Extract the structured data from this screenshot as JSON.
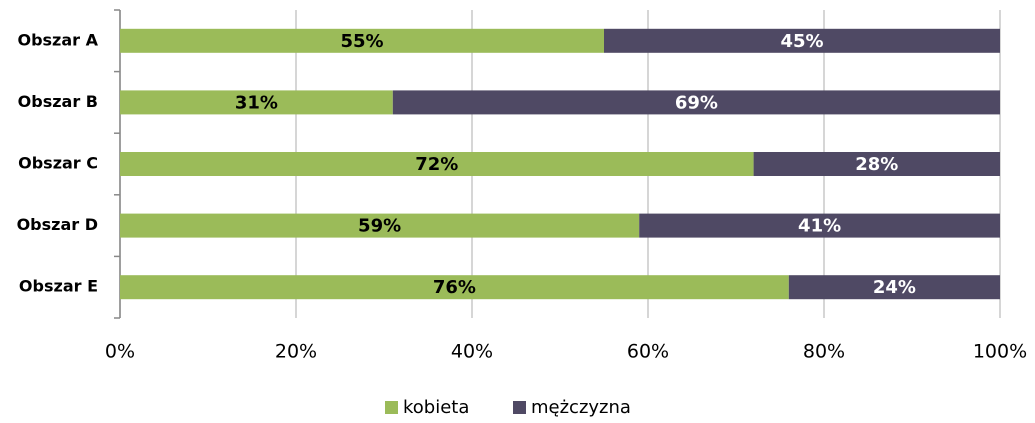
{
  "chart_data": {
    "type": "stacked_bar_horizontal",
    "categories": [
      "Obszar A",
      "Obszar B",
      "Obszar C",
      "Obszar D",
      "Obszar E"
    ],
    "series": [
      {
        "name": "kobieta",
        "color": "#9bbb59",
        "values": [
          55,
          31,
          72,
          59,
          76
        ],
        "value_labels": [
          "55%",
          "31%",
          "72%",
          "59%",
          "76%"
        ]
      },
      {
        "name": "mężczyzna",
        "color": "#4f4964",
        "values": [
          45,
          69,
          28,
          41,
          24
        ],
        "value_labels": [
          "45%",
          "69%",
          "28%",
          "41%",
          "24%"
        ]
      }
    ],
    "xlim": [
      0,
      100
    ],
    "xticks": [
      {
        "value": 0,
        "label": "0%"
      },
      {
        "value": 20,
        "label": "20%"
      },
      {
        "value": 40,
        "label": "40%"
      },
      {
        "value": 60,
        "label": "60%"
      },
      {
        "value": 80,
        "label": "80%"
      },
      {
        "value": 100,
        "label": "100%"
      }
    ],
    "grid": true,
    "legend": "bottom"
  }
}
